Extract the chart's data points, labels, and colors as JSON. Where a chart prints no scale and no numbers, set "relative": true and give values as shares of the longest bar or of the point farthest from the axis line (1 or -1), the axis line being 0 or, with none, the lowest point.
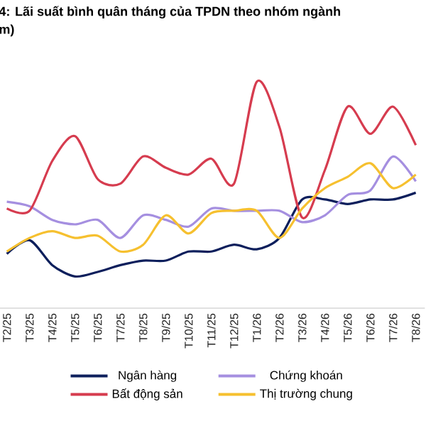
{
  "chart_data": {
    "type": "line",
    "title": "4: Lãi suất bình quân tháng của TPDN theo nhóm ngành",
    "subtitle": "m)",
    "categories": [
      "T2/25",
      "T3/25",
      "T4/25",
      "T5/25",
      "T6/25",
      "T7/25",
      "T8/25",
      "T9/25",
      "T10/25",
      "T11/25",
      "T12/25",
      "T1/26",
      "T2/26",
      "T3/26",
      "T4/26",
      "T5/26",
      "T6/26",
      "T7/26",
      "T8/26"
    ],
    "relative": true,
    "grid": false,
    "legend": "bottom",
    "tick_labels": "x",
    "marker": "none",
    "line_style": "solid",
    "series": [
      {
        "name": "Ngân hàng",
        "color": "#0d1f5c",
        "values": [
          0.24,
          0.3,
          0.19,
          0.14,
          0.16,
          0.19,
          0.21,
          0.21,
          0.25,
          0.25,
          0.28,
          0.26,
          0.31,
          0.48,
          0.48,
          0.46,
          0.48,
          0.48,
          0.51
        ]
      },
      {
        "name": "Chứng khoán",
        "color": "#a58fe0",
        "values": [
          0.47,
          0.45,
          0.39,
          0.37,
          0.39,
          0.31,
          0.41,
          0.39,
          0.36,
          0.44,
          0.43,
          0.43,
          0.43,
          0.38,
          0.41,
          0.5,
          0.52,
          0.67,
          0.56
        ]
      },
      {
        "name": "Bất động sản",
        "color": "#d63c4f",
        "values": [
          0.44,
          0.43,
          0.65,
          0.76,
          0.57,
          0.55,
          0.67,
          0.62,
          0.59,
          0.66,
          0.55,
          1.0,
          0.8,
          0.4,
          0.61,
          0.89,
          0.77,
          0.89,
          0.72
        ]
      },
      {
        "name": "Thị trường chung",
        "color": "#f6c02f",
        "values": [
          0.25,
          0.31,
          0.34,
          0.31,
          0.32,
          0.25,
          0.28,
          0.41,
          0.33,
          0.42,
          0.43,
          0.43,
          0.31,
          0.44,
          0.53,
          0.58,
          0.64,
          0.53,
          0.59
        ]
      }
    ]
  }
}
